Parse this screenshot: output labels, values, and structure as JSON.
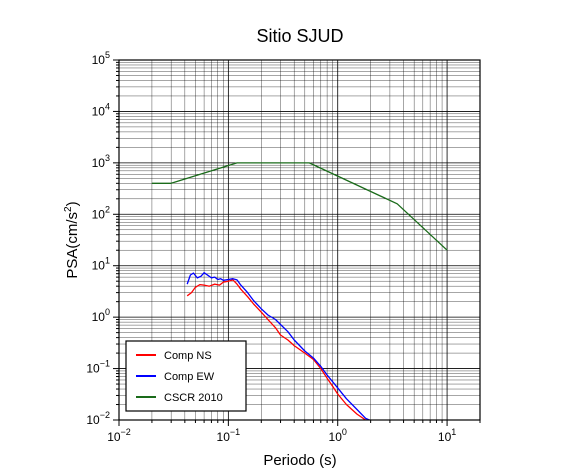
{
  "chart_data": {
    "type": "line",
    "title": "Sitio SJUD",
    "xlabel": "Periodo (s)",
    "ylabel": "PSA(cm/s",
    "ylabel_sup": "2",
    "ylabel_close": ")",
    "xscale": "log",
    "yscale": "log",
    "xlim": [
      0.01,
      20
    ],
    "ylim": [
      0.01,
      100000
    ],
    "grid": true,
    "legend_position": "bottom-left",
    "x_ticks": [
      {
        "value": 0.01,
        "base": "10",
        "exp": "−2"
      },
      {
        "value": 0.1,
        "base": "10",
        "exp": "−1"
      },
      {
        "value": 1,
        "base": "10",
        "exp": "0"
      },
      {
        "value": 10,
        "base": "10",
        "exp": "1"
      }
    ],
    "y_ticks": [
      {
        "value": 0.01,
        "base": "10",
        "exp": "−2"
      },
      {
        "value": 0.1,
        "base": "10",
        "exp": "−1"
      },
      {
        "value": 1,
        "base": "10",
        "exp": "0"
      },
      {
        "value": 10,
        "base": "10",
        "exp": "1"
      },
      {
        "value": 100,
        "base": "10",
        "exp": "2"
      },
      {
        "value": 1000,
        "base": "10",
        "exp": "3"
      },
      {
        "value": 10000,
        "base": "10",
        "exp": "4"
      },
      {
        "value": 100000,
        "base": "10",
        "exp": "5"
      }
    ],
    "series": [
      {
        "name": "Comp NS",
        "color": "#ff0000",
        "x": [
          0.042,
          0.046,
          0.05,
          0.055,
          0.06,
          0.067,
          0.075,
          0.083,
          0.09,
          0.1,
          0.11,
          0.12,
          0.13,
          0.15,
          0.17,
          0.2,
          0.23,
          0.27,
          0.3,
          0.35,
          0.4,
          0.5,
          0.6,
          0.7,
          0.8,
          0.9,
          1.0,
          1.2,
          1.5,
          1.8,
          2.0
        ],
        "y": [
          2.6,
          3.0,
          3.8,
          4.3,
          4.2,
          4.0,
          4.4,
          4.2,
          4.8,
          5.0,
          5.3,
          4.4,
          3.5,
          2.5,
          1.8,
          1.25,
          0.9,
          0.62,
          0.45,
          0.36,
          0.28,
          0.2,
          0.15,
          0.1,
          0.065,
          0.045,
          0.032,
          0.02,
          0.013,
          0.01,
          0.0095
        ]
      },
      {
        "name": "Comp EW",
        "color": "#0000ff",
        "x": [
          0.042,
          0.045,
          0.048,
          0.052,
          0.056,
          0.06,
          0.065,
          0.07,
          0.075,
          0.08,
          0.085,
          0.09,
          0.1,
          0.11,
          0.12,
          0.13,
          0.15,
          0.17,
          0.2,
          0.23,
          0.27,
          0.3,
          0.35,
          0.4,
          0.5,
          0.6,
          0.7,
          0.8,
          1.0,
          1.2,
          1.5,
          1.8,
          2.0
        ],
        "y": [
          4.4,
          6.6,
          7.2,
          5.8,
          6.2,
          7.3,
          6.5,
          5.8,
          6.0,
          5.4,
          5.6,
          5.2,
          5.4,
          5.6,
          5.3,
          4.2,
          3.0,
          2.1,
          1.45,
          1.1,
          0.9,
          0.72,
          0.52,
          0.36,
          0.22,
          0.16,
          0.11,
          0.075,
          0.042,
          0.026,
          0.016,
          0.0108,
          0.0098
        ]
      },
      {
        "name": "CSCR 2010",
        "color": "#1a6b1a",
        "x": [
          0.02,
          0.03,
          0.12,
          0.55,
          3.5,
          10
        ],
        "y": [
          400,
          400,
          1000,
          1000,
          160,
          20
        ]
      }
    ]
  }
}
